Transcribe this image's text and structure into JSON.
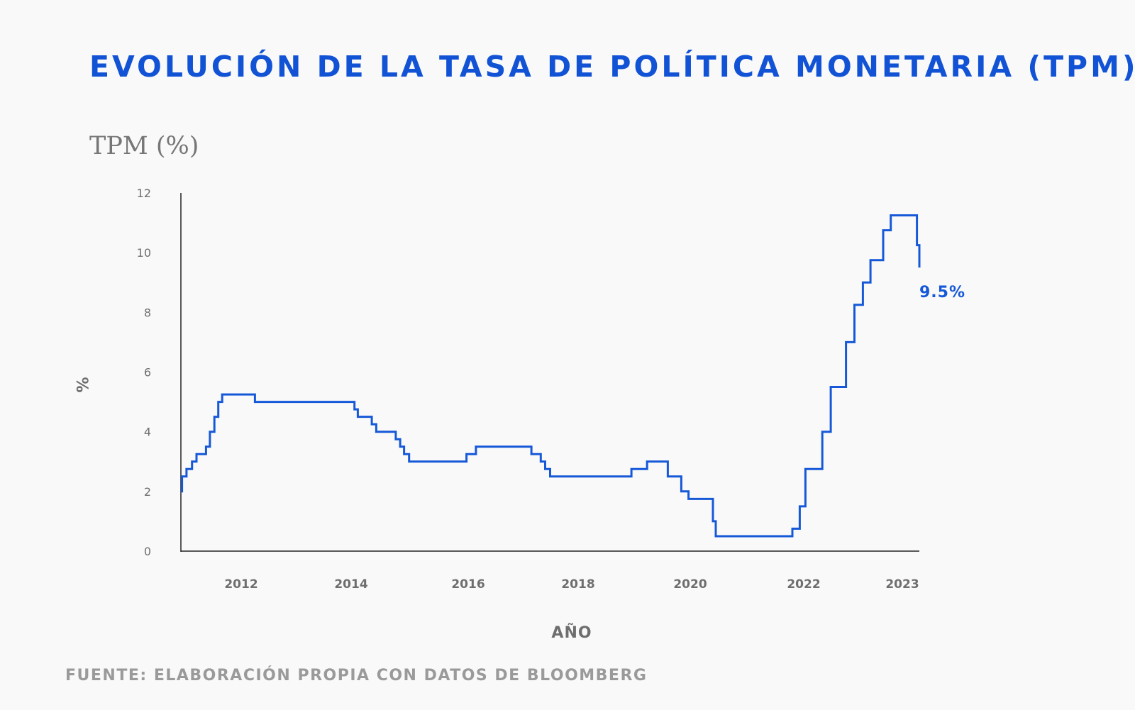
{
  "colors": {
    "title": "#1253d6",
    "series": "#1659d8",
    "axis": "#222222",
    "muted": "#6e6e6e",
    "background": "#f9f9f9"
  },
  "source": "FUENTE: ELABORACIÓN PROPIA CON DATOS DE BLOOMBERG",
  "chart_data": {
    "type": "line",
    "title": "EVOLUCIÓN DE LA TASA DE POLÍTICA MONETARIA (TPM)",
    "subtitle": "TPM (%)",
    "xlabel": "AÑO",
    "ylabel": "%",
    "xlim": [
      2010.9,
      2023.3
    ],
    "ylim": [
      0,
      12
    ],
    "yticks": [
      "0",
      "2",
      "4",
      "6",
      "8",
      "10",
      "12"
    ],
    "xticks": [
      {
        "label": "2012",
        "x": 2012.0
      },
      {
        "label": "2014",
        "x": 2014.0
      },
      {
        "label": "2016",
        "x": 2016.1
      },
      {
        "label": "2018",
        "x": 2018.1
      },
      {
        "label": "2020",
        "x": 2020.1
      },
      {
        "label": "2022",
        "x": 2022.1
      },
      {
        "label": "2023",
        "x": 2023.3
      }
    ],
    "grid": false,
    "series": [
      {
        "name": "TPM",
        "step": true,
        "points": [
          [
            2010.92,
            2.0
          ],
          [
            2010.94,
            2.5
          ],
          [
            2011.02,
            2.75
          ],
          [
            2011.12,
            3.0
          ],
          [
            2011.2,
            3.25
          ],
          [
            2011.37,
            3.5
          ],
          [
            2011.44,
            4.0
          ],
          [
            2011.52,
            4.5
          ],
          [
            2011.59,
            5.0
          ],
          [
            2011.66,
            5.25
          ],
          [
            2012.25,
            5.0
          ],
          [
            2014.06,
            4.75
          ],
          [
            2014.12,
            4.5
          ],
          [
            2014.37,
            4.25
          ],
          [
            2014.45,
            4.0
          ],
          [
            2014.8,
            3.75
          ],
          [
            2014.88,
            3.5
          ],
          [
            2014.95,
            3.25
          ],
          [
            2015.04,
            3.0
          ],
          [
            2016.07,
            3.25
          ],
          [
            2016.24,
            3.5
          ],
          [
            2017.25,
            3.25
          ],
          [
            2017.42,
            3.0
          ],
          [
            2017.5,
            2.75
          ],
          [
            2017.59,
            2.5
          ],
          [
            2019.05,
            2.75
          ],
          [
            2019.33,
            3.0
          ],
          [
            2019.7,
            2.5
          ],
          [
            2019.94,
            2.0
          ],
          [
            2020.07,
            1.75
          ],
          [
            2020.5,
            1.0
          ],
          [
            2020.55,
            0.5
          ],
          [
            2021.9,
            0.75
          ],
          [
            2022.03,
            1.5
          ],
          [
            2022.12,
            2.75
          ],
          [
            2022.32,
            4.0
          ],
          [
            2022.42,
            5.5
          ],
          [
            2022.6,
            7.0
          ],
          [
            2022.7,
            8.25
          ],
          [
            2022.8,
            9.0
          ],
          [
            2022.89,
            9.75
          ],
          [
            2023.04,
            10.75
          ],
          [
            2023.13,
            11.25
          ],
          [
            2023.94,
            10.25
          ],
          [
            2024.07,
            9.5
          ]
        ]
      }
    ],
    "annotations": [
      {
        "text": "9.5%",
        "x": 2024.07,
        "y": 9.5
      }
    ]
  }
}
